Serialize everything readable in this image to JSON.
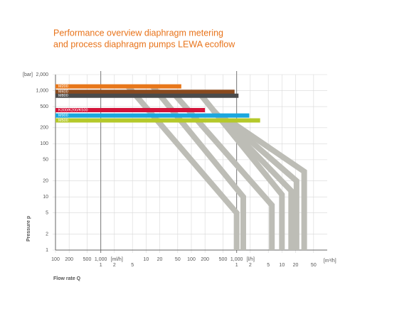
{
  "chart_data": {
    "type": "line",
    "title": [
      "Performance overview diaphragm metering",
      "and process diaphragm pumps LEWA ecoflow"
    ],
    "y_label": "Pressure p",
    "y_unit": "[bar]",
    "x_label": "Flow rate Q",
    "log": true,
    "grid": true,
    "ylim": [
      1,
      2000
    ],
    "yticks": [
      {
        "value": 2000,
        "label": "2,000"
      },
      {
        "value": 1000,
        "label": "1,000"
      },
      500,
      200,
      100,
      50,
      20,
      10,
      5,
      2,
      1
    ],
    "xlim": [
      0.1,
      100000
    ],
    "x_scales": [
      {
        "unit": "[ml/h]",
        "ticks": [
          100,
          200,
          500,
          {
            "value": 1000,
            "label": "1,000"
          }
        ]
      },
      {
        "unit": "[l/h]",
        "ticks": [
          1,
          2,
          5,
          10,
          20,
          50,
          100,
          200,
          500,
          {
            "value": 1000,
            "label": "1,000"
          }
        ]
      },
      {
        "unit": "[m³/h]",
        "ticks": [
          1,
          2,
          5,
          10,
          20,
          50
        ]
      }
    ],
    "curves": [
      {
        "color": "#bdbdb6",
        "x": [
          4,
          1000,
          1000
        ],
        "values": [
          1200,
          5,
          1
        ]
      },
      {
        "color": "#bdbdb6",
        "x": [
          14,
          1400,
          1400
        ],
        "values": [
          1200,
          10,
          1
        ]
      },
      {
        "color": "#bdbdb6",
        "x": [
          40,
          6000,
          6000
        ],
        "values": [
          900,
          7,
          1
        ]
      },
      {
        "color": "#bdbdb6",
        "x": [
          150,
          10000,
          10000
        ],
        "values": [
          900,
          11,
          1
        ]
      },
      {
        "color": "#bdbdb6",
        "x": [
          300,
          16000,
          16000
        ],
        "values": [
          430,
          13,
          1
        ]
      },
      {
        "color": "#bdbdb6",
        "x": [
          450,
          21000,
          21000
        ],
        "values": [
          340,
          20,
          1
        ]
      },
      {
        "color": "#bdbdb6",
        "x": [
          700,
          31000,
          31000
        ],
        "values": [
          270,
          30,
          1
        ]
      }
    ],
    "series": [
      {
        "name": "M200",
        "color": "#e8771a",
        "x": [
          0.1,
          60
        ],
        "values": [
          1200,
          1200
        ]
      },
      {
        "name": "M400",
        "color": "#8a4a1e",
        "x": [
          0.1,
          900
        ],
        "values": [
          950,
          950
        ]
      },
      {
        "name": "M800",
        "color": "#4b4b4b",
        "x": [
          0.1,
          1100
        ],
        "values": [
          800,
          800
        ]
      },
      {
        "name": "K300/K200/K500",
        "color": "#d3143a",
        "x": [
          0.1,
          200
        ],
        "values": [
          430,
          430
        ]
      },
      {
        "name": "M900",
        "color": "#1aa7de",
        "x": [
          0.1,
          1900
        ],
        "values": [
          340,
          340
        ]
      },
      {
        "name": "M500",
        "color": "#b5c92a",
        "x": [
          0.1,
          3300
        ],
        "values": [
          275,
          275
        ]
      }
    ]
  }
}
